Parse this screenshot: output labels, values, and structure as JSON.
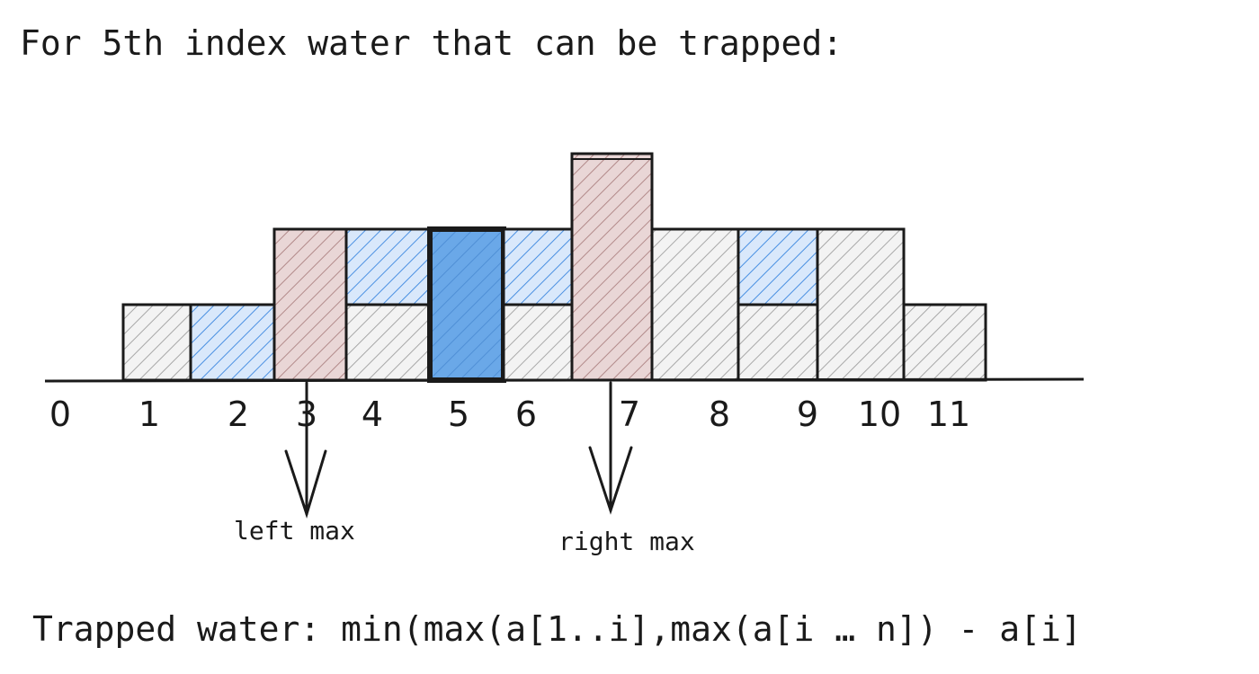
{
  "title": "For 5th index water that can be trapped:",
  "formula": "Trapped water: min(max(a[1..i],max(a[i … n]) - a[i]",
  "labels": {
    "left_max": "left max",
    "right_max": "right max"
  },
  "colors": {
    "bar_hatch": "#a8a8a8",
    "bar_fill": "#f3f3f3",
    "water_hatch": "#4a90e2",
    "water_fill": "#d9e8fb",
    "max_bar_fill": "#e9d6d6",
    "max_bar_hatch": "#b28a8a",
    "highlight_fill": "#6aa8e8",
    "outline": "#1a1a1a"
  },
  "chart_data": {
    "type": "bar",
    "categories": [
      "0",
      "1",
      "2",
      "3",
      "4",
      "5",
      "6",
      "7",
      "8",
      "9",
      "10",
      "11"
    ],
    "bar_heights": [
      0,
      2,
      0,
      4,
      2,
      0,
      2,
      6,
      4,
      2,
      4,
      2
    ],
    "water": [
      0,
      0,
      2,
      0,
      2,
      4,
      2,
      0,
      0,
      2,
      0,
      0
    ],
    "total_level": [
      0,
      2,
      2,
      4,
      4,
      4,
      4,
      6,
      4,
      4,
      4,
      2
    ],
    "highlight_index": 5,
    "left_max_index": 3,
    "right_max_index": 7
  }
}
